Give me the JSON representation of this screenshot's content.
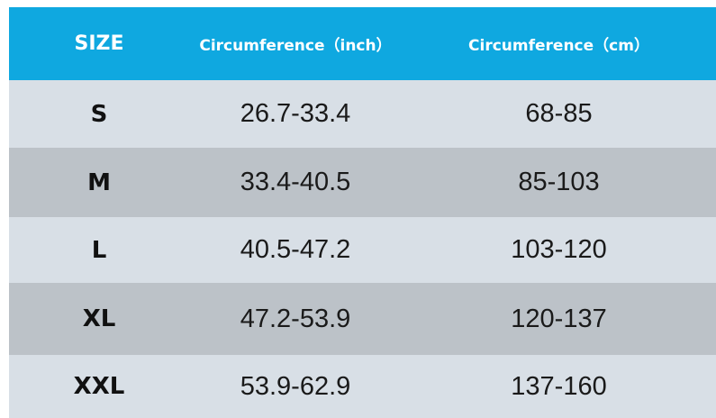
{
  "header": {
    "size": "SIZE",
    "inch": "Circumference（inch）",
    "cm": "Circumference（cm）"
  },
  "rows": [
    {
      "size": "S",
      "inch": "26.7-33.4",
      "cm": "68-85"
    },
    {
      "size": "M",
      "inch": "33.4-40.5",
      "cm": "85-103"
    },
    {
      "size": "L",
      "inch": "40.5-47.2",
      "cm": "103-120"
    },
    {
      "size": "XL",
      "inch": "47.2-53.9",
      "cm": "120-137"
    },
    {
      "size": "XXL",
      "inch": "53.9-62.9",
      "cm": "137-160"
    }
  ],
  "colors": {
    "header_bg": "#0fa8e0",
    "row_light": "#d8dfe6",
    "row_dark": "#bcc2c8"
  }
}
